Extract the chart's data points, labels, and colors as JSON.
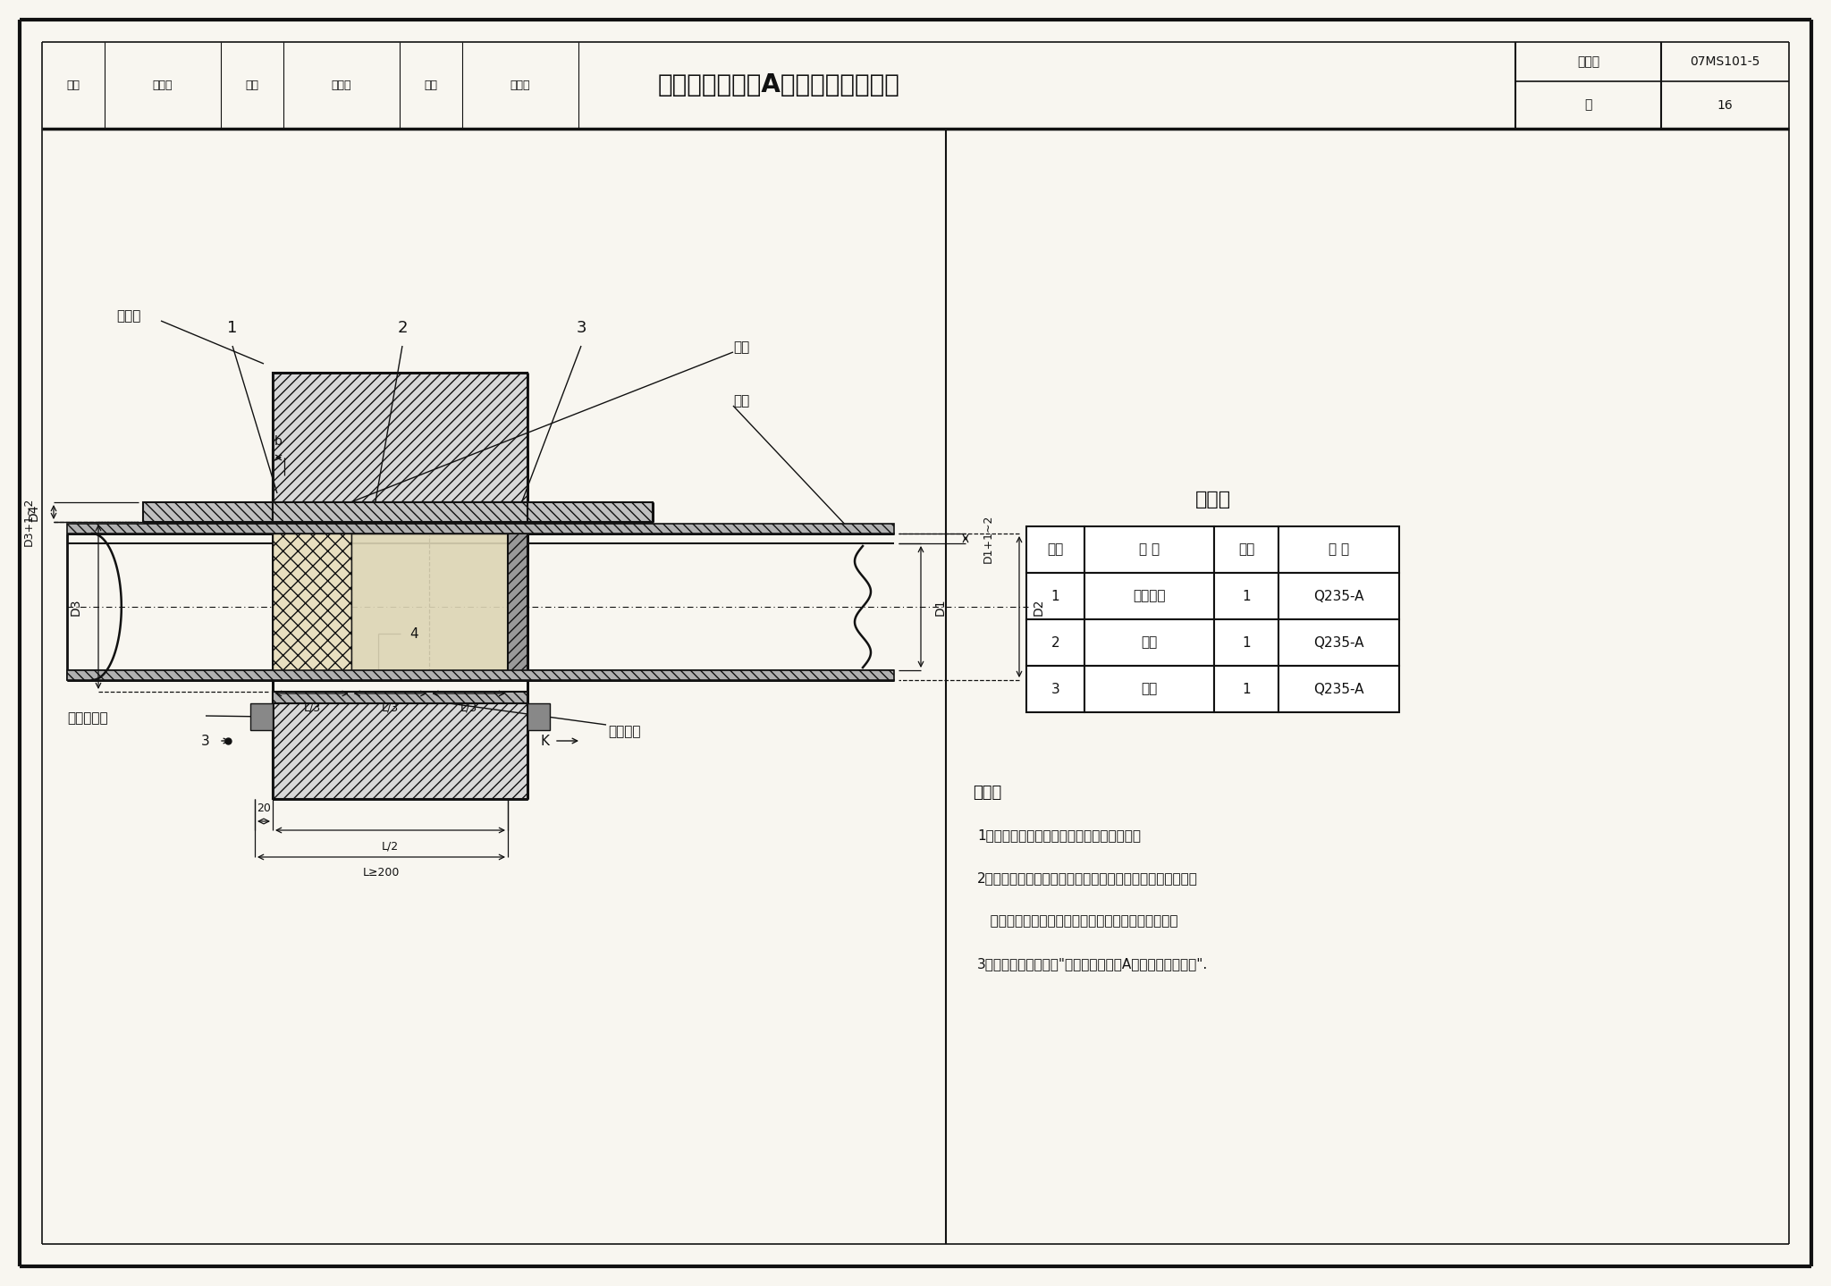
{
  "bg_color": "#f8f6f0",
  "line_color": "#111111",
  "title": "刚性防水套管（A型）安装图（二）",
  "atlas_number": "07MS101-5",
  "page": "16",
  "material_table_title": "材料表",
  "material_headers": [
    "序号",
    "名 称",
    "数量",
    "材 料"
  ],
  "material_rows": [
    [
      "1",
      "钉制套管",
      "1",
      "Q235-A"
    ],
    [
      "2",
      "翄环",
      "1",
      "Q235-A"
    ],
    [
      "3",
      "挡圈",
      "1",
      "Q235-A"
    ]
  ],
  "notes_title": "说明：",
  "notes": [
    "1．本图适用于饮用水水池防水套管的安装。",
    "2．在石棉水泥填打完毕后进行，填嵌无毒密封膏时，应保证",
    "   缝内各接触面无锈蚀、漆皮、污物，且干净、干燥。",
    "3．其他要求见本图集\"刚性防水套管（A型）安装图（一）\"."
  ],
  "label_yingshui": "迎水面",
  "label_youma": "油麻",
  "label_gangguan": "钔管",
  "label_shimian": "石棉水泥",
  "label_wudu": "无毒密封膏",
  "label_K": "K",
  "footer_review": "审核",
  "footer_reviewer": "林海燕",
  "footer_check": "校对",
  "footer_checker": "陈春明",
  "footer_design": "设计",
  "footer_designer": "欧阳容",
  "footer_page_label": "页",
  "footer_atlas_label": "图集号"
}
